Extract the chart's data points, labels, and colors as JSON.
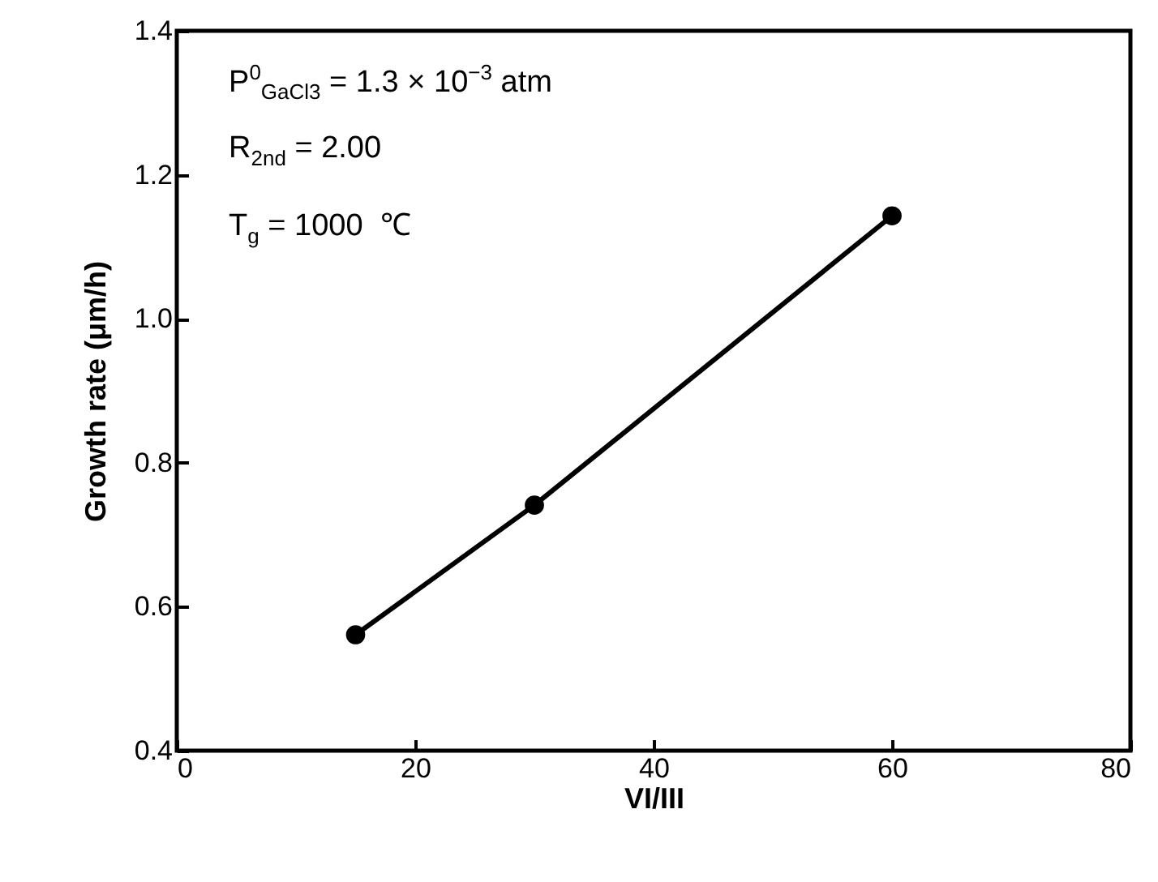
{
  "chart_data": {
    "type": "line",
    "xlabel": "VI/III",
    "ylabel": "Growth rate (μm/h)",
    "x": [
      15,
      30,
      60
    ],
    "series": [
      {
        "color": "#000000",
        "values": [
          0.561,
          0.741,
          1.143
        ]
      }
    ],
    "xlim": [
      0,
      80
    ],
    "xticks": [
      0,
      20,
      40,
      60,
      80
    ],
    "ylim": [
      0.4,
      1.4
    ],
    "yticks": [
      0.4,
      0.6,
      0.8,
      {
        "value": 1,
        "label": "1.0"
      },
      1.2,
      1.4
    ],
    "marker": "circle",
    "line_style": "solid",
    "grid": false,
    "annotations": [
      "P$^{0}$$_{GaCl3}$ = 1.3 × 10$^{−3}$ atm",
      "R$_{2nd}$ = 2.00",
      "T$_{g}$ = 1000  ℃"
    ]
  }
}
